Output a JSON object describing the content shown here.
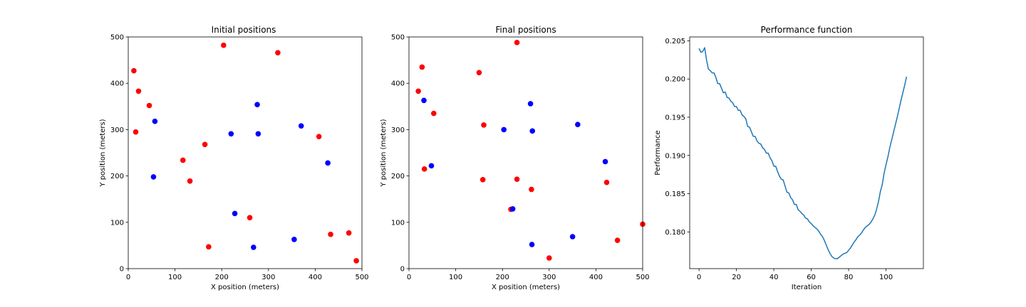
{
  "colors": {
    "red": "#ff0000",
    "blue": "#0000ff",
    "line": "#1f77b4"
  },
  "chart_data": [
    {
      "type": "scatter",
      "title": "Initial positions",
      "xlabel": "X position (meters)",
      "ylabel": "Y position (meters)",
      "xlim": [
        0,
        500
      ],
      "ylim": [
        0,
        500
      ],
      "xticks": [
        0,
        100,
        200,
        300,
        400,
        500
      ],
      "yticks": [
        0,
        100,
        200,
        300,
        400,
        500
      ],
      "grid": false,
      "series": [
        {
          "color": "red",
          "points": [
            [
              12,
              427
            ],
            [
              22,
              383
            ],
            [
              45,
              352
            ],
            [
              16,
              295
            ],
            [
              117,
              234
            ],
            [
              132,
              189
            ],
            [
              164,
              268
            ],
            [
              172,
              47
            ],
            [
              204,
              482
            ],
            [
              320,
              466
            ],
            [
              260,
              110
            ],
            [
              408,
              285
            ],
            [
              433,
              74
            ],
            [
              472,
              77
            ],
            [
              488,
              17
            ]
          ]
        },
        {
          "color": "blue",
          "points": [
            [
              57,
              318
            ],
            [
              54,
              198
            ],
            [
              220,
              291
            ],
            [
              228,
              119
            ],
            [
              276,
              354
            ],
            [
              278,
              291
            ],
            [
              268,
              46
            ],
            [
              355,
              63
            ],
            [
              370,
              308
            ],
            [
              427,
              228
            ]
          ]
        }
      ]
    },
    {
      "type": "scatter",
      "title": "Final positions",
      "xlabel": "X position (meters)",
      "ylabel": "Y position (meters)",
      "xlim": [
        0,
        500
      ],
      "ylim": [
        0,
        500
      ],
      "xticks": [
        0,
        100,
        200,
        300,
        400,
        500
      ],
      "yticks": [
        0,
        100,
        200,
        300,
        400,
        500
      ],
      "grid": false,
      "series": [
        {
          "color": "red",
          "points": [
            [
              20,
              383
            ],
            [
              28,
              435
            ],
            [
              33,
              215
            ],
            [
              53,
              335
            ],
            [
              150,
              423
            ],
            [
              160,
              310
            ],
            [
              158,
              192
            ],
            [
              218,
              128
            ],
            [
              231,
              488
            ],
            [
              231,
              193
            ],
            [
              262,
              171
            ],
            [
              300,
              23
            ],
            [
              423,
              186
            ],
            [
              446,
              61
            ],
            [
              500,
              96
            ]
          ]
        },
        {
          "color": "blue",
          "points": [
            [
              32,
              363
            ],
            [
              48,
              222
            ],
            [
              203,
              300
            ],
            [
              222,
              129
            ],
            [
              260,
              356
            ],
            [
              264,
              297
            ],
            [
              263,
              52
            ],
            [
              350,
              69
            ],
            [
              361,
              311
            ],
            [
              420,
              231
            ]
          ]
        }
      ]
    },
    {
      "type": "line",
      "title": "Performance function",
      "xlabel": "Iteration",
      "ylabel": "Performance",
      "xlim": [
        -5,
        120
      ],
      "ylim": [
        0.1752,
        0.2055
      ],
      "xticks": [
        0,
        20,
        40,
        60,
        80,
        100
      ],
      "yticks": [
        "0.180",
        "0.185",
        "0.190",
        "0.195",
        "0.200",
        "0.205"
      ],
      "grid": false,
      "series": [
        {
          "color": "line",
          "points": [
            [
              0,
              0.204
            ],
            [
              1,
              0.2035
            ],
            [
              2,
              0.2036
            ],
            [
              3,
              0.2041
            ],
            [
              4,
              0.2025
            ],
            [
              5,
              0.2013
            ],
            [
              6,
              0.2011
            ],
            [
              7,
              0.2008
            ],
            [
              8,
              0.2008
            ],
            [
              9,
              0.2002
            ],
            [
              10,
              0.1994
            ],
            [
              11,
              0.1994
            ],
            [
              12,
              0.1988
            ],
            [
              13,
              0.1982
            ],
            [
              14,
              0.1983
            ],
            [
              15,
              0.1976
            ],
            [
              16,
              0.1975
            ],
            [
              17,
              0.1971
            ],
            [
              18,
              0.1969
            ],
            [
              19,
              0.1964
            ],
            [
              20,
              0.1964
            ],
            [
              21,
              0.1959
            ],
            [
              22,
              0.1959
            ],
            [
              23,
              0.1953
            ],
            [
              24,
              0.1951
            ],
            [
              25,
              0.1948
            ],
            [
              26,
              0.1938
            ],
            [
              27,
              0.1937
            ],
            [
              28,
              0.1931
            ],
            [
              29,
              0.1925
            ],
            [
              30,
              0.1925
            ],
            [
              31,
              0.1919
            ],
            [
              32,
              0.1916
            ],
            [
              33,
              0.1915
            ],
            [
              34,
              0.191
            ],
            [
              35,
              0.1908
            ],
            [
              36,
              0.1903
            ],
            [
              37,
              0.1903
            ],
            [
              38,
              0.1897
            ],
            [
              39,
              0.1893
            ],
            [
              40,
              0.1886
            ],
            [
              41,
              0.1886
            ],
            [
              42,
              0.1879
            ],
            [
              43,
              0.1873
            ],
            [
              44,
              0.1869
            ],
            [
              45,
              0.1868
            ],
            [
              46,
              0.186
            ],
            [
              47,
              0.1852
            ],
            [
              48,
              0.1851
            ],
            [
              49,
              0.1845
            ],
            [
              50,
              0.1842
            ],
            [
              51,
              0.1836
            ],
            [
              52,
              0.1836
            ],
            [
              53,
              0.1829
            ],
            [
              54,
              0.1827
            ],
            [
              55,
              0.1824
            ],
            [
              56,
              0.1822
            ],
            [
              57,
              0.1818
            ],
            [
              58,
              0.1817
            ],
            [
              59,
              0.1813
            ],
            [
              60,
              0.1811
            ],
            [
              61,
              0.1808
            ],
            [
              62,
              0.1806
            ],
            [
              63,
              0.1804
            ],
            [
              64,
              0.1801
            ],
            [
              65,
              0.1797
            ],
            [
              66,
              0.1794
            ],
            [
              67,
              0.1789
            ],
            [
              68,
              0.1783
            ],
            [
              69,
              0.1777
            ],
            [
              70,
              0.1772
            ],
            [
              71,
              0.1768
            ],
            [
              72,
              0.1766
            ],
            [
              73,
              0.1765
            ],
            [
              74,
              0.1765
            ],
            [
              75,
              0.1767
            ],
            [
              76,
              0.1769
            ],
            [
              77,
              0.1771
            ],
            [
              78,
              0.1772
            ],
            [
              79,
              0.1773
            ],
            [
              80,
              0.1776
            ],
            [
              81,
              0.1779
            ],
            [
              82,
              0.1783
            ],
            [
              83,
              0.1787
            ],
            [
              84,
              0.179
            ],
            [
              85,
              0.1794
            ],
            [
              86,
              0.1796
            ],
            [
              87,
              0.1799
            ],
            [
              88,
              0.1803
            ],
            [
              89,
              0.1806
            ],
            [
              90,
              0.1808
            ],
            [
              91,
              0.181
            ],
            [
              92,
              0.1813
            ],
            [
              93,
              0.1817
            ],
            [
              94,
              0.1822
            ],
            [
              95,
              0.183
            ],
            [
              96,
              0.184
            ],
            [
              97,
              0.1853
            ],
            [
              98,
              0.1862
            ],
            [
              99,
              0.1877
            ],
            [
              100,
              0.1888
            ],
            [
              101,
              0.1898
            ],
            [
              102,
              0.191
            ],
            [
              103,
              0.192
            ],
            [
              104,
              0.193
            ],
            [
              105,
              0.194
            ],
            [
              106,
              0.195
            ],
            [
              107,
              0.1961
            ],
            [
              108,
              0.1972
            ],
            [
              109,
              0.1982
            ],
            [
              110,
              0.1992
            ],
            [
              111,
              0.2003
            ]
          ]
        }
      ]
    }
  ]
}
